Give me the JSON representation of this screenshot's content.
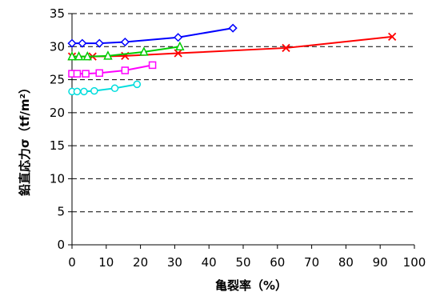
{
  "chart_data": {
    "type": "line",
    "xlabel": "亀裂率（%）",
    "ylabel": "鉛直応力σ（tf/m²）",
    "xlim": [
      0,
      100
    ],
    "ylim": [
      0,
      35
    ],
    "x_ticks": [
      "0",
      "10",
      "20",
      "30",
      "40",
      "50",
      "60",
      "70",
      "80",
      "90",
      "100"
    ],
    "y_ticks": [
      "0",
      "5",
      "10",
      "15",
      "20",
      "25",
      "30",
      "35"
    ],
    "grid": "horizontal-dashed",
    "series": [
      {
        "marker": "diamond",
        "color": "#0000FF",
        "x": [
          0,
          3,
          8,
          15.5,
          31,
          47
        ],
        "y": [
          30.5,
          30.5,
          30.5,
          30.7,
          31.4,
          32.8
        ]
      },
      {
        "marker": "x",
        "color": "#FF0000",
        "x": [
          0,
          6,
          15.5,
          31,
          62.5,
          93.5
        ],
        "y": [
          28.5,
          28.5,
          28.6,
          29.0,
          29.8,
          31.5
        ]
      },
      {
        "marker": "triangle",
        "color": "#00CC00",
        "x": [
          0,
          2,
          4.5,
          10.5,
          21,
          31.5
        ],
        "y": [
          28.5,
          28.5,
          28.5,
          28.6,
          29.2,
          30.0
        ]
      },
      {
        "marker": "square",
        "color": "#FF00FF",
        "x": [
          0,
          1.5,
          4,
          8,
          15.5,
          23.5
        ],
        "y": [
          25.9,
          25.9,
          25.9,
          26.0,
          26.4,
          27.2
        ]
      },
      {
        "marker": "circle",
        "color": "#00DDDD",
        "x": [
          0,
          1.5,
          3.5,
          6.5,
          12.5,
          19
        ],
        "y": [
          23.2,
          23.2,
          23.2,
          23.3,
          23.7,
          24.3
        ]
      }
    ]
  }
}
